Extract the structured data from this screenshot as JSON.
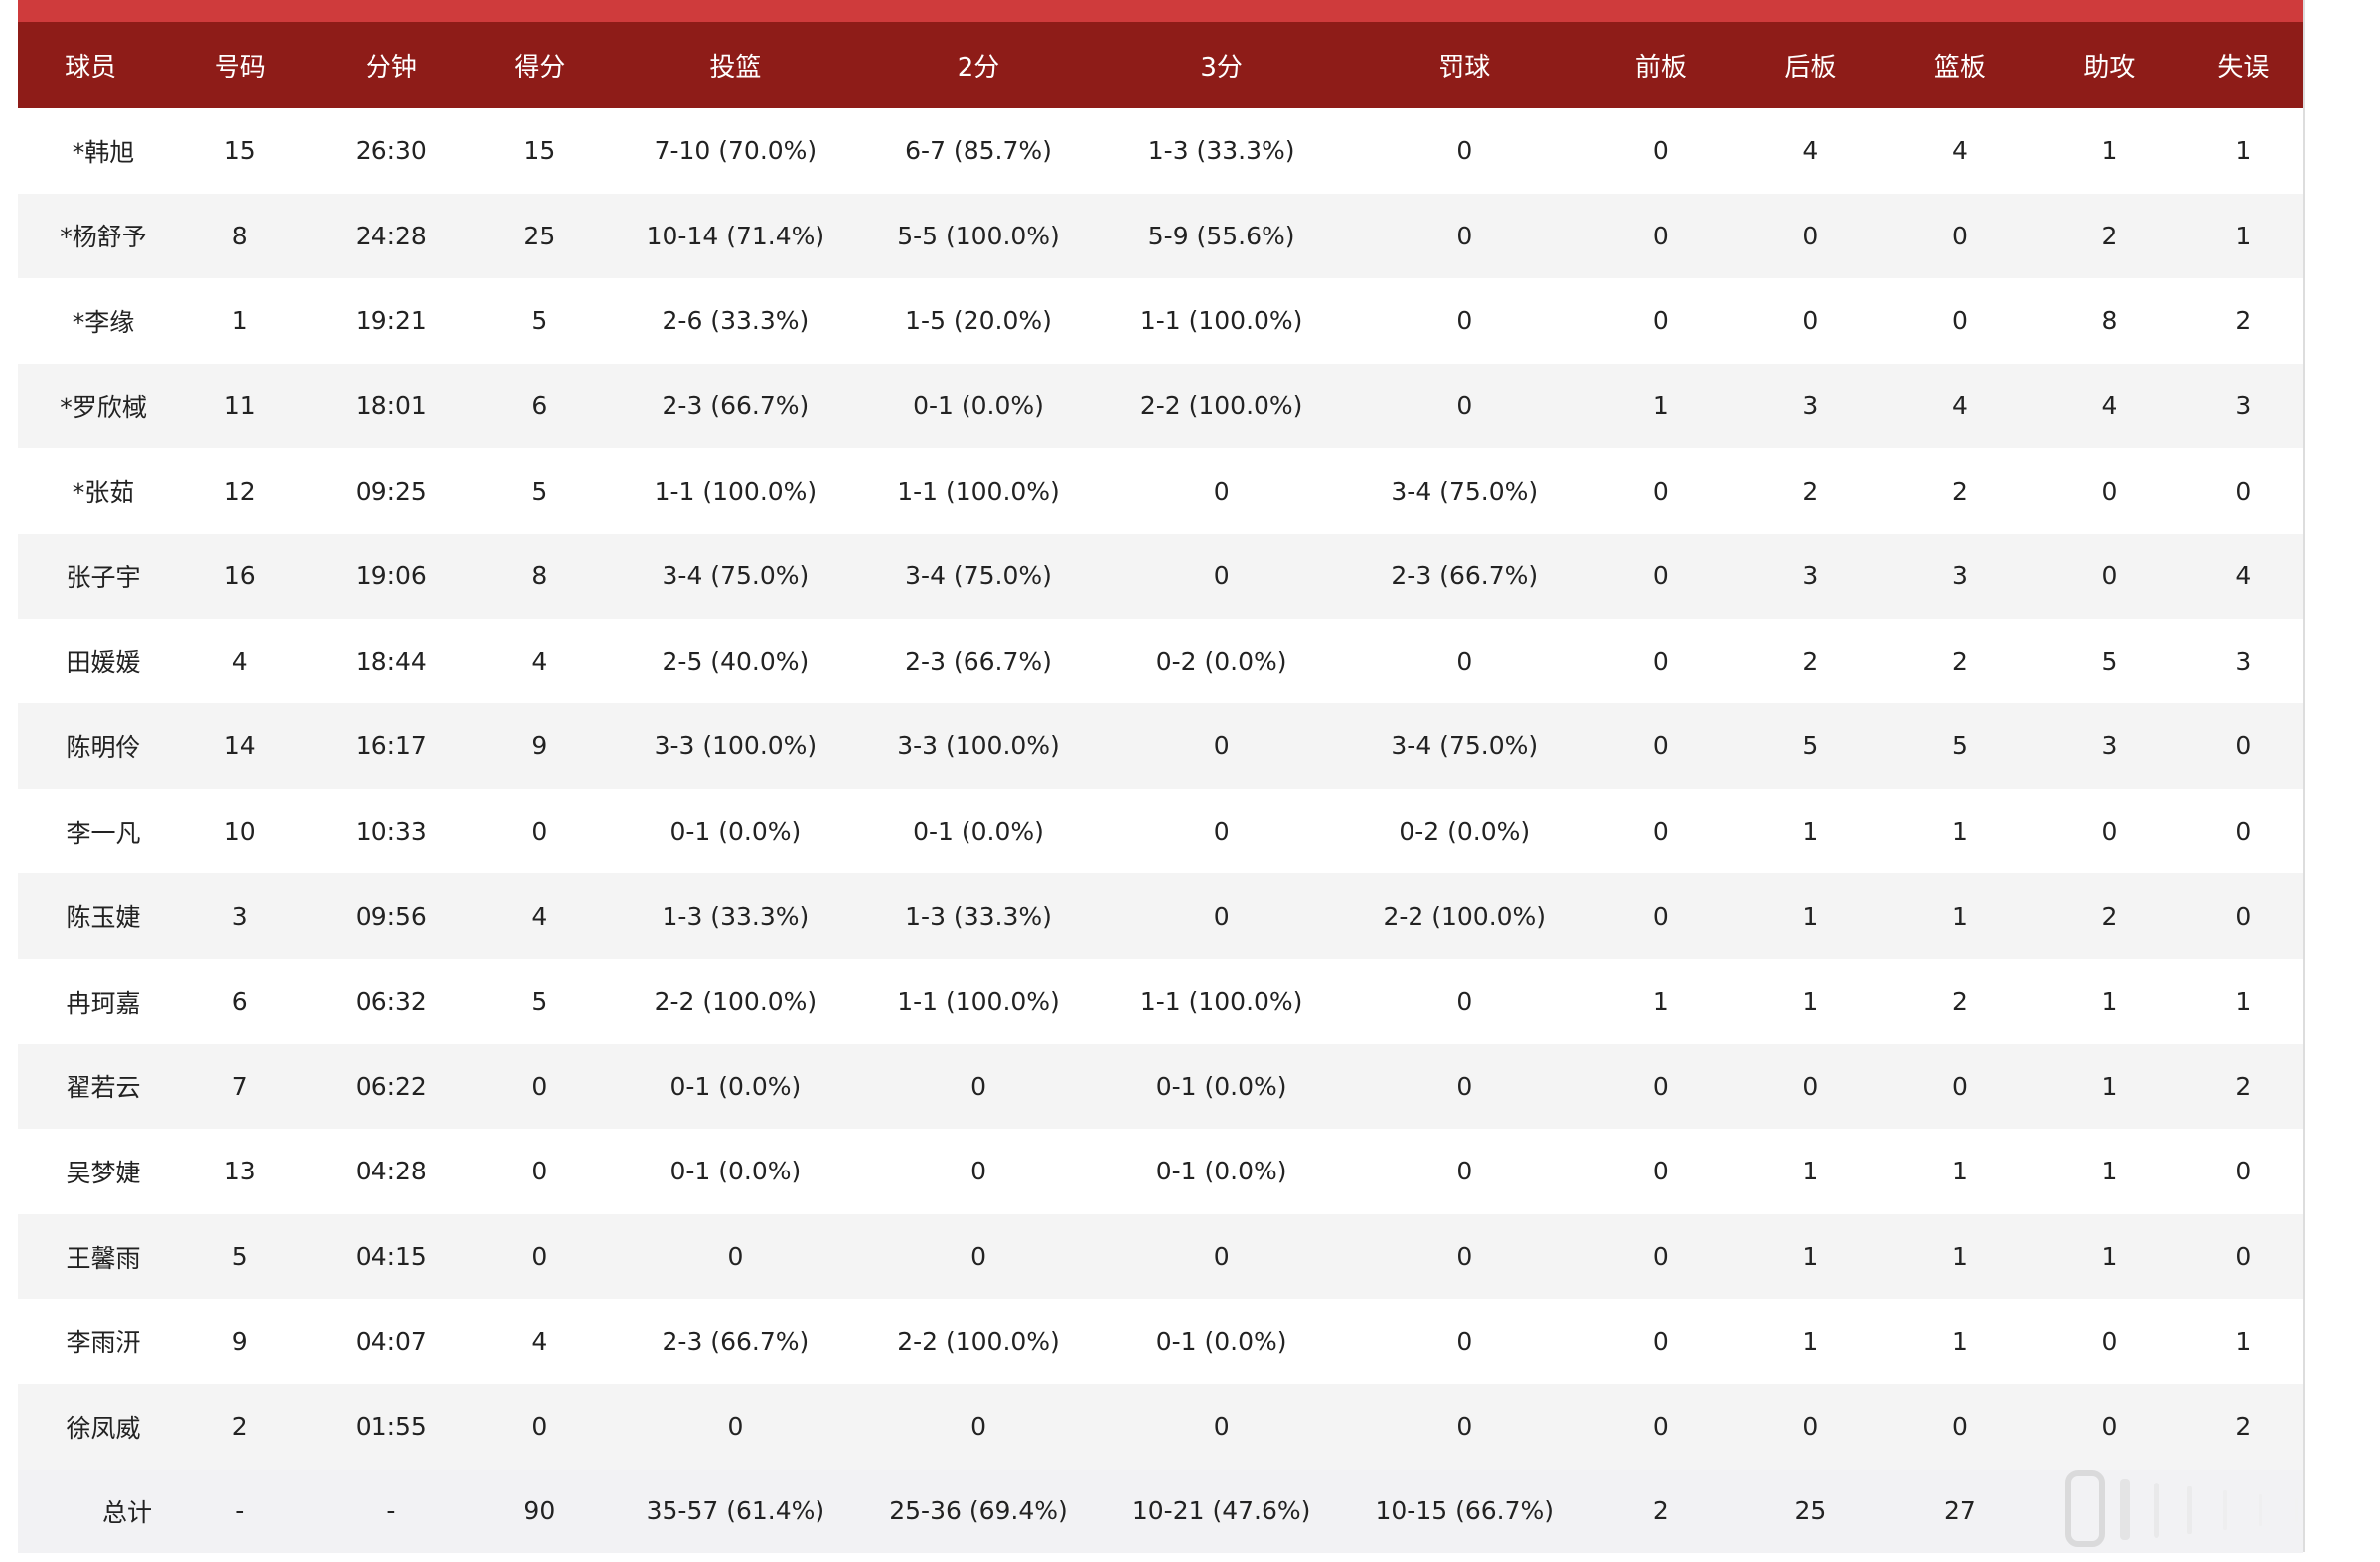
{
  "table": {
    "headers": [
      "球员",
      "号码",
      "分钟",
      "得分",
      "投篮",
      "2分",
      "3分",
      "罚球",
      "前板",
      "后板",
      "篮板",
      "助攻",
      "失误"
    ],
    "rows": [
      [
        "*韩旭",
        "15",
        "26:30",
        "15",
        "7-10 (70.0%)",
        "6-7 (85.7%)",
        "1-3 (33.3%)",
        "0",
        "0",
        "4",
        "4",
        "1",
        "1"
      ],
      [
        "*杨舒予",
        "8",
        "24:28",
        "25",
        "10-14 (71.4%)",
        "5-5 (100.0%)",
        "5-9 (55.6%)",
        "0",
        "0",
        "0",
        "0",
        "2",
        "1"
      ],
      [
        "*李缘",
        "1",
        "19:21",
        "5",
        "2-6 (33.3%)",
        "1-5 (20.0%)",
        "1-1 (100.0%)",
        "0",
        "0",
        "0",
        "0",
        "8",
        "2"
      ],
      [
        "*罗欣棫",
        "11",
        "18:01",
        "6",
        "2-3 (66.7%)",
        "0-1 (0.0%)",
        "2-2 (100.0%)",
        "0",
        "1",
        "3",
        "4",
        "4",
        "3"
      ],
      [
        "*张茹",
        "12",
        "09:25",
        "5",
        "1-1 (100.0%)",
        "1-1 (100.0%)",
        "0",
        "3-4 (75.0%)",
        "0",
        "2",
        "2",
        "0",
        "0"
      ],
      [
        "张子宇",
        "16",
        "19:06",
        "8",
        "3-4 (75.0%)",
        "3-4 (75.0%)",
        "0",
        "2-3 (66.7%)",
        "0",
        "3",
        "3",
        "0",
        "4"
      ],
      [
        "田媛媛",
        "4",
        "18:44",
        "4",
        "2-5 (40.0%)",
        "2-3 (66.7%)",
        "0-2 (0.0%)",
        "0",
        "0",
        "2",
        "2",
        "5",
        "3"
      ],
      [
        "陈明伶",
        "14",
        "16:17",
        "9",
        "3-3 (100.0%)",
        "3-3 (100.0%)",
        "0",
        "3-4 (75.0%)",
        "0",
        "5",
        "5",
        "3",
        "0"
      ],
      [
        "李一凡",
        "10",
        "10:33",
        "0",
        "0-1 (0.0%)",
        "0-1 (0.0%)",
        "0",
        "0-2 (0.0%)",
        "0",
        "1",
        "1",
        "0",
        "0"
      ],
      [
        "陈玉婕",
        "3",
        "09:56",
        "4",
        "1-3 (33.3%)",
        "1-3 (33.3%)",
        "0",
        "2-2 (100.0%)",
        "0",
        "1",
        "1",
        "2",
        "0"
      ],
      [
        "冉珂嘉",
        "6",
        "06:32",
        "5",
        "2-2 (100.0%)",
        "1-1 (100.0%)",
        "1-1 (100.0%)",
        "0",
        "1",
        "1",
        "2",
        "1",
        "1"
      ],
      [
        "翟若云",
        "7",
        "06:22",
        "0",
        "0-1 (0.0%)",
        "0",
        "0-1 (0.0%)",
        "0",
        "0",
        "0",
        "0",
        "1",
        "2"
      ],
      [
        "吴梦婕",
        "13",
        "04:28",
        "0",
        "0-1 (0.0%)",
        "0",
        "0-1 (0.0%)",
        "0",
        "0",
        "1",
        "1",
        "1",
        "0"
      ],
      [
        "王馨雨",
        "5",
        "04:15",
        "0",
        "0",
        "0",
        "0",
        "0",
        "0",
        "1",
        "1",
        "1",
        "0"
      ],
      [
        "李雨汧",
        "9",
        "04:07",
        "4",
        "2-3 (66.7%)",
        "2-2 (100.0%)",
        "0-1 (0.0%)",
        "0",
        "0",
        "1",
        "1",
        "0",
        "1"
      ],
      [
        "徐凤威",
        "2",
        "01:55",
        "0",
        "0",
        "0",
        "0",
        "0",
        "0",
        "0",
        "0",
        "0",
        "2"
      ]
    ],
    "total": [
      "总计",
      "-",
      "-",
      "90",
      "35-57 (61.4%)",
      "25-36 (69.4%)",
      "10-21 (47.6%)",
      "10-15 (66.7%)",
      "2",
      "25",
      "27",
      "",
      ""
    ]
  },
  "colors": {
    "header_bg": "#8e1c18",
    "top_accent": "#cf3b3c",
    "row_alt": "#f4f4f4",
    "total_bg": "#f2f2f4"
  },
  "icons": {
    "overlay": "watermark-bars-icon"
  }
}
